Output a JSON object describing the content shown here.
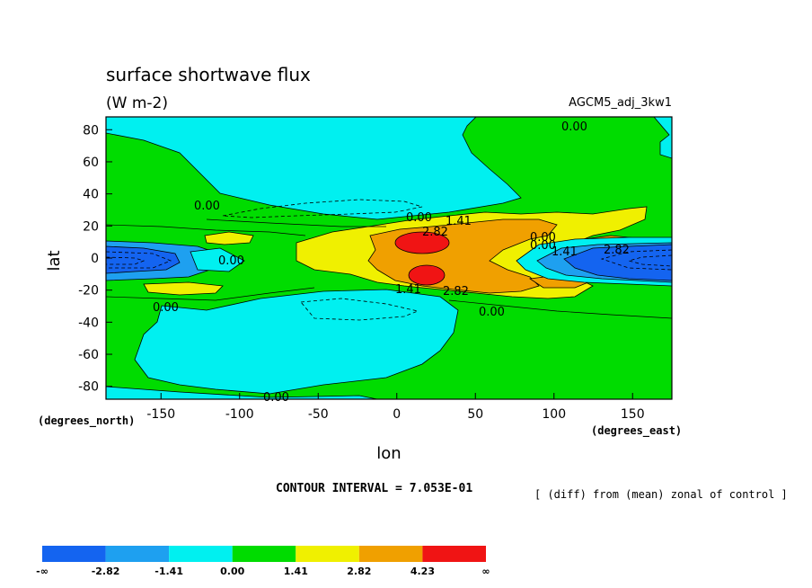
{
  "chart_data": {
    "type": "contour",
    "title": "surface shortwave flux",
    "units": "(W m-2)",
    "dataset": "AGCM5_adj_3kw1",
    "xlabel": "lon",
    "ylabel": "lat",
    "xunits": "(degrees_east)",
    "yunits": "(degrees_north)",
    "xlim": [
      -185,
      175
    ],
    "ylim": [
      -88,
      88
    ],
    "xticks": [
      -150,
      -100,
      -50,
      0,
      50,
      100,
      150
    ],
    "yticks": [
      80,
      60,
      40,
      20,
      0,
      -20,
      -40,
      -60,
      -80
    ],
    "contour_interval_text": "CONTOUR INTERVAL = 7.053E-01",
    "note": "[ (diff) from (mean) zonal of control ]",
    "contour_labels": [
      "0.00",
      "0.00",
      "0.00",
      "1.41",
      "2.82",
      "0.00",
      "1.41",
      "2.82",
      "0.00",
      "0.00",
      "1.41",
      "2.82",
      "0.00",
      "0.00",
      "0.00"
    ],
    "colorbar": {
      "colors": [
        "#1464f0",
        "#1ea0f0",
        "#00f0f0",
        "#00dc00",
        "#f0f000",
        "#f0a000",
        "#f01414"
      ],
      "labels": [
        "-∞",
        "-2.82",
        "-1.41",
        "0.00",
        "1.41",
        "2.82",
        "4.23",
        "∞"
      ]
    }
  }
}
